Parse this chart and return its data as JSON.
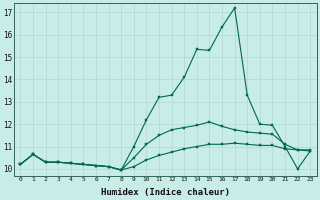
{
  "xlabel": "Humidex (Indice chaleur)",
  "bg_color": "#c8ece8",
  "grid_color": "#b0d8d0",
  "line_color": "#006655",
  "xlim_min": -0.5,
  "xlim_max": 23.5,
  "ylim_min": 9.7,
  "ylim_max": 17.4,
  "yticks": [
    10,
    11,
    12,
    13,
    14,
    15,
    16,
    17
  ],
  "xticks": [
    0,
    1,
    2,
    3,
    4,
    5,
    6,
    7,
    8,
    9,
    10,
    11,
    12,
    13,
    14,
    15,
    16,
    17,
    18,
    19,
    20,
    21,
    22,
    23
  ],
  "line1_y": [
    10.2,
    10.65,
    10.3,
    10.3,
    10.25,
    10.2,
    10.15,
    10.1,
    9.95,
    10.1,
    10.4,
    10.6,
    10.75,
    10.9,
    11.0,
    11.1,
    11.1,
    11.15,
    11.1,
    11.05,
    11.05,
    10.9,
    10.85,
    10.8
  ],
  "line2_y": [
    10.2,
    10.65,
    10.3,
    10.3,
    10.25,
    10.2,
    10.15,
    10.1,
    9.95,
    10.5,
    11.1,
    11.5,
    11.75,
    11.85,
    11.95,
    12.1,
    11.9,
    11.75,
    11.65,
    11.6,
    11.55,
    11.1,
    10.85,
    10.85
  ],
  "line3_y": [
    10.2,
    10.65,
    10.3,
    10.3,
    10.25,
    10.2,
    10.15,
    10.1,
    9.95,
    11.0,
    12.2,
    13.2,
    13.3,
    14.1,
    15.35,
    15.3,
    16.35,
    17.2,
    13.3,
    12.0,
    11.95,
    11.0,
    10.0,
    10.8
  ]
}
